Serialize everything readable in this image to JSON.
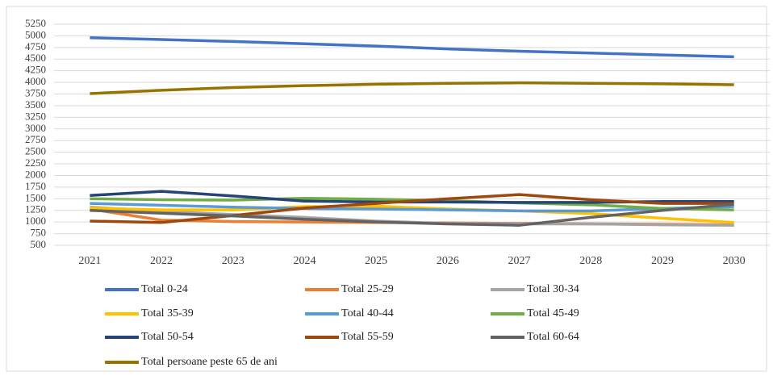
{
  "chart_data": {
    "type": "line",
    "categories": [
      "2021",
      "2022",
      "2023",
      "2024",
      "2025",
      "2026",
      "2027",
      "2028",
      "2029",
      "2030"
    ],
    "series": [
      {
        "name": "Total 0-24",
        "color": "#4472c4",
        "values": [
          4960,
          4920,
          4880,
          4830,
          4780,
          4720,
          4670,
          4630,
          4590,
          4550
        ]
      },
      {
        "name": "Total 25-29",
        "color": "#ed7d31",
        "values": [
          1280,
          1040,
          1010,
          1000,
          990,
          980,
          970,
          960,
          950,
          940
        ]
      },
      {
        "name": "Total 30-34",
        "color": "#a5a5a5",
        "values": [
          1320,
          1230,
          1160,
          1100,
          1020,
          970,
          960,
          960,
          940,
          930
        ]
      },
      {
        "name": "Total 35-39",
        "color": "#ffc000",
        "values": [
          1300,
          1260,
          1260,
          1330,
          1340,
          1280,
          1240,
          1180,
          1080,
          990
        ]
      },
      {
        "name": "Total 40-44",
        "color": "#5b9bd5",
        "values": [
          1400,
          1360,
          1320,
          1290,
          1280,
          1260,
          1240,
          1240,
          1290,
          1330
        ]
      },
      {
        "name": "Total 45-49",
        "color": "#70ad47",
        "values": [
          1500,
          1480,
          1470,
          1510,
          1490,
          1460,
          1410,
          1370,
          1290,
          1260
        ]
      },
      {
        "name": "Total 50-54",
        "color": "#264478",
        "values": [
          1570,
          1660,
          1560,
          1450,
          1430,
          1430,
          1420,
          1420,
          1440,
          1440
        ]
      },
      {
        "name": "Total 55-59",
        "color": "#9e480e",
        "values": [
          1020,
          990,
          1140,
          1300,
          1400,
          1500,
          1590,
          1480,
          1400,
          1400
        ]
      },
      {
        "name": "Total 60-64",
        "color": "#636363",
        "values": [
          1250,
          1190,
          1130,
          1060,
          1000,
          960,
          930,
          1100,
          1250,
          1380
        ]
      },
      {
        "name": "Total persoane peste 65 de ani",
        "color": "#997300",
        "values": [
          3760,
          3830,
          3890,
          3930,
          3960,
          3980,
          3990,
          3980,
          3970,
          3950
        ]
      }
    ],
    "ylim": [
      500,
      5250
    ],
    "yticks": [
      500,
      750,
      1000,
      1250,
      1500,
      1750,
      2000,
      2250,
      2500,
      2750,
      3000,
      3250,
      3500,
      3750,
      4000,
      4250,
      4500,
      4750,
      5000,
      5250
    ],
    "grid": true
  }
}
